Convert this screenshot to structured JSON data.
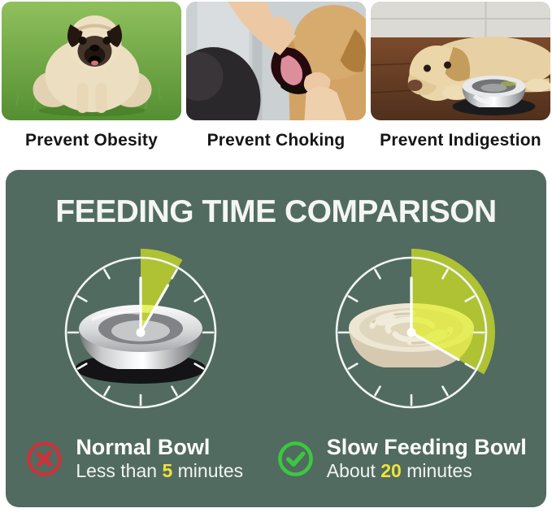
{
  "theme": {
    "panel": "#516b60",
    "accent": "#f0e23a",
    "red": "#cf3138",
    "green": "#3cc83e",
    "wedge_fill": "rgba(224,240,28,0.66)"
  },
  "benefits": [
    {
      "caption": "Prevent Obesity",
      "photo": "overweight pug dog sitting on grass"
    },
    {
      "caption": "Prevent Choking",
      "photo": "hand checking a golden retriever's open mouth"
    },
    {
      "caption": "Prevent Indigestion",
      "photo": "labrador lying on wooden floor beside a steel bowl"
    }
  ],
  "comparison": {
    "title": "FEEDING TIME COMPARISON",
    "clocks": [
      {
        "bowl": "normal stainless steel bowl",
        "sweep_deg": 30
      },
      {
        "bowl": "slow feeding maze bowl",
        "sweep_deg": 120
      }
    ],
    "items": [
      {
        "icon": "cross",
        "name": "Normal Bowl",
        "time_prefix": "Less than",
        "time_value": "5",
        "time_suffix": "minutes"
      },
      {
        "icon": "check",
        "name": "Slow Feeding Bowl",
        "time_prefix": "About",
        "time_value": "20",
        "time_suffix": "minutes"
      }
    ]
  }
}
